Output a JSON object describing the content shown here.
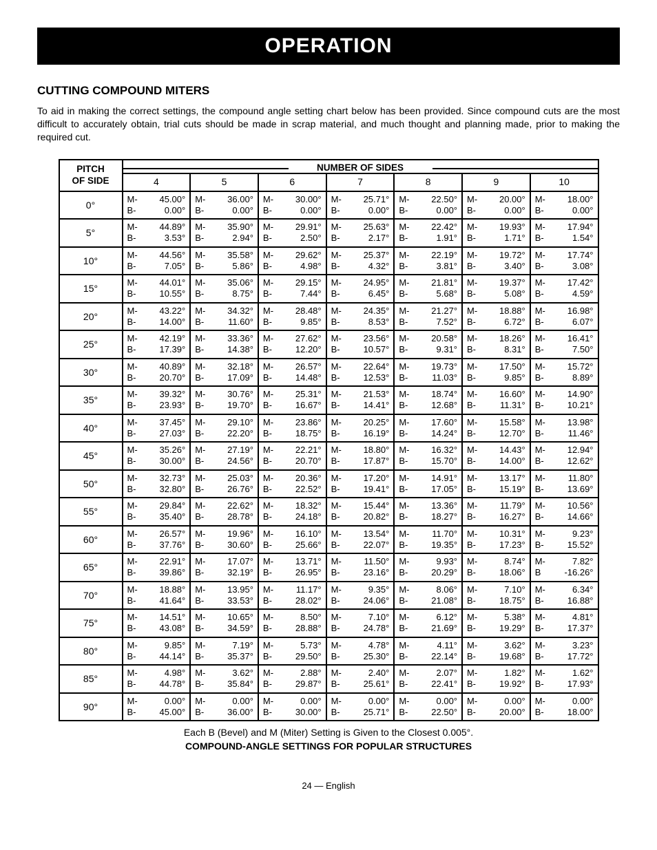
{
  "banner": "OPERATION",
  "heading": "CUTTING COMPOUND MITERS",
  "intro": "To aid in making the correct settings, the compound angle setting chart below has been provided. Since compound cuts are the most difficult to accurately obtain, trial cuts should be made in scrap material, and much thought and planning made, prior to making the required cut.",
  "table": {
    "sides_header": "NUMBER OF SIDES",
    "pitch_header_l1": "PITCH",
    "pitch_header_l2": "OF SIDE",
    "columns": [
      "4",
      "5",
      "6",
      "7",
      "8",
      "9",
      "10"
    ],
    "rows": [
      {
        "pitch": "0°",
        "cells": [
          {
            "m": "M- 45.00°",
            "b": "B-   0.00°"
          },
          {
            "m": "M- 36.00°",
            "b": "B-   0.00°"
          },
          {
            "m": "M- 30.00°",
            "b": "B-   0.00°"
          },
          {
            "m": "M- 25.71°",
            "b": "B-   0.00°"
          },
          {
            "m": "M- 22.50°",
            "b": "B-   0.00°"
          },
          {
            "m": "M- 20.00°",
            "b": "B-   0.00°"
          },
          {
            "m": "M- 18.00°",
            "b": "B-   0.00°"
          }
        ]
      },
      {
        "pitch": "5°",
        "cells": [
          {
            "m": "M- 44.89°",
            "b": "B-   3.53°"
          },
          {
            "m": "M- 35.90°",
            "b": "B-   2.94°"
          },
          {
            "m": "M- 29.91°",
            "b": "B-   2.50°"
          },
          {
            "m": "M- 25.63°",
            "b": "B-   2.17°"
          },
          {
            "m": "M- 22.42°",
            "b": "B-   1.91°"
          },
          {
            "m": "M- 19.93°",
            "b": "B-   1.71°"
          },
          {
            "m": "M- 17.94°",
            "b": "B-   1.54°"
          }
        ]
      },
      {
        "pitch": "10°",
        "cells": [
          {
            "m": "M- 44.56°",
            "b": "B-   7.05°"
          },
          {
            "m": "M- 35.58°",
            "b": "B-   5.86°"
          },
          {
            "m": "M- 29.62°",
            "b": "B-   4.98°"
          },
          {
            "m": "M- 25.37°",
            "b": "B-   4.32°"
          },
          {
            "m": "M- 22.19°",
            "b": "B-   3.81°"
          },
          {
            "m": "M- 19.72°",
            "b": "B-   3.40°"
          },
          {
            "m": "M- 17.74°",
            "b": "B-   3.08°"
          }
        ]
      },
      {
        "pitch": "15°",
        "cells": [
          {
            "m": "M- 44.01°",
            "b": "B- 10.55°"
          },
          {
            "m": "M- 35.06°",
            "b": "B-   8.75°"
          },
          {
            "m": "M- 29.15°",
            "b": "B-   7.44°"
          },
          {
            "m": "M- 24.95°",
            "b": "B-   6.45°"
          },
          {
            "m": "M- 21.81°",
            "b": "B-   5.68°"
          },
          {
            "m": "M- 19.37°",
            "b": "B-   5.08°"
          },
          {
            "m": "M- 17.42°",
            "b": "B-   4.59°"
          }
        ]
      },
      {
        "pitch": "20°",
        "cells": [
          {
            "m": "M- 43.22°",
            "b": "B- 14.00°"
          },
          {
            "m": "M- 34.32°",
            "b": "B- 11.60°"
          },
          {
            "m": "M- 28.48°",
            "b": "B-   9.85°"
          },
          {
            "m": "M- 24.35°",
            "b": "B-   8.53°"
          },
          {
            "m": "M- 21.27°",
            "b": "B-   7.52°"
          },
          {
            "m": "M- 18.88°",
            "b": "B-   6.72°"
          },
          {
            "m": "M- 16.98°",
            "b": "B-   6.07°"
          }
        ]
      },
      {
        "pitch": "25°",
        "cells": [
          {
            "m": "M- 42.19°",
            "b": "B- 17.39°"
          },
          {
            "m": "M- 33.36°",
            "b": "B- 14.38°"
          },
          {
            "m": "M- 27.62°",
            "b": "B- 12.20°"
          },
          {
            "m": "M- 23.56°",
            "b": "B- 10.57°"
          },
          {
            "m": "M- 20.58°",
            "b": "B-   9.31°"
          },
          {
            "m": "M- 18.26°",
            "b": "B-   8.31°"
          },
          {
            "m": "M- 16.41°",
            "b": "B-   7.50°"
          }
        ]
      },
      {
        "pitch": "30°",
        "cells": [
          {
            "m": "M- 40.89°",
            "b": "B- 20.70°"
          },
          {
            "m": "M- 32.18°",
            "b": "B- 17.09°"
          },
          {
            "m": "M- 26.57°",
            "b": "B- 14.48°"
          },
          {
            "m": "M- 22.64°",
            "b": "B- 12.53°"
          },
          {
            "m": "M- 19.73°",
            "b": "B- 11.03°"
          },
          {
            "m": "M- 17.50°",
            "b": "B-   9.85°"
          },
          {
            "m": "M- 15.72°",
            "b": "B-   8.89°"
          }
        ]
      },
      {
        "pitch": "35°",
        "cells": [
          {
            "m": "M- 39.32°",
            "b": "B- 23.93°"
          },
          {
            "m": "M- 30.76°",
            "b": "B- 19.70°"
          },
          {
            "m": "M- 25.31°",
            "b": "B- 16.67°"
          },
          {
            "m": "M- 21.53°",
            "b": "B- 14.41°"
          },
          {
            "m": "M- 18.74°",
            "b": "B- 12.68°"
          },
          {
            "m": "M- 16.60°",
            "b": "B- 11.31°"
          },
          {
            "m": "M- 14.90°",
            "b": "B- 10.21°"
          }
        ]
      },
      {
        "pitch": "40°",
        "cells": [
          {
            "m": "M- 37.45°",
            "b": "B- 27.03°"
          },
          {
            "m": "M- 29.10°",
            "b": "B- 22.20°"
          },
          {
            "m": "M- 23.86°",
            "b": "B- 18.75°"
          },
          {
            "m": "M- 20.25°",
            "b": "B- 16.19°"
          },
          {
            "m": "M- 17.60°",
            "b": "B- 14.24°"
          },
          {
            "m": "M- 15.58°",
            "b": "B- 12.70°"
          },
          {
            "m": "M- 13.98°",
            "b": "B- 11.46°"
          }
        ]
      },
      {
        "pitch": "45°",
        "cells": [
          {
            "m": "M- 35.26°",
            "b": "B-  30.00°"
          },
          {
            "m": "M- 27.19°",
            "b": "B- 24.56°"
          },
          {
            "m": "M- 22.21°",
            "b": "B- 20.70°"
          },
          {
            "m": "M- 18.80°",
            "b": "B- 17.87°"
          },
          {
            "m": "M- 16.32°",
            "b": "B- 15.70°"
          },
          {
            "m": "M- 14.43°",
            "b": "B- 14.00°"
          },
          {
            "m": "M- 12.94°",
            "b": "B- 12.62°"
          }
        ]
      },
      {
        "pitch": "50°",
        "cells": [
          {
            "m": "M- 32.73°",
            "b": "B- 32.80°"
          },
          {
            "m": "M- 25.03°",
            "b": "B- 26.76°"
          },
          {
            "m": "M- 20.36°",
            "b": "B- 22.52°"
          },
          {
            "m": "M- 17.20°",
            "b": "B- 19.41°"
          },
          {
            "m": "M- 14.91°",
            "b": "B- 17.05°"
          },
          {
            "m": "M- 13.17°",
            "b": "B- 15.19°"
          },
          {
            "m": "M- 11.80°",
            "b": "B- 13.69°"
          }
        ]
      },
      {
        "pitch": "55°",
        "cells": [
          {
            "m": "M- 29.84°",
            "b": "B- 35.40°"
          },
          {
            "m": "M- 22.62°",
            "b": "B- 28.78°"
          },
          {
            "m": "M- 18.32°",
            "b": "B- 24.18°"
          },
          {
            "m": "M- 15.44°",
            "b": "B-  20.82°"
          },
          {
            "m": "M- 13.36°",
            "b": "B- 18.27°"
          },
          {
            "m": "M- 11.79°",
            "b": "B- 16.27°"
          },
          {
            "m": "M- 10.56°",
            "b": "B- 14.66°"
          }
        ]
      },
      {
        "pitch": "60°",
        "cells": [
          {
            "m": "M- 26.57°",
            "b": "B- 37.76°"
          },
          {
            "m": "M- 19.96°",
            "b": "B- 30.60°"
          },
          {
            "m": "M- 16.10°",
            "b": "B- 25.66°"
          },
          {
            "m": "M- 13.54°",
            "b": "B- 22.07°"
          },
          {
            "m": "M- 11.70°",
            "b": "B- 19.35°"
          },
          {
            "m": "M- 10.31°",
            "b": "B- 17.23°"
          },
          {
            "m": "M-   9.23°",
            "b": "B- 15.52°"
          }
        ]
      },
      {
        "pitch": "65°",
        "cells": [
          {
            "m": "M- 22.91°",
            "b": "B- 39.86°"
          },
          {
            "m": "M- 17.07°",
            "b": "B- 32.19°"
          },
          {
            "m": "M- 13.71°",
            "b": "B- 26.95°"
          },
          {
            "m": "M- 11.50°",
            "b": "B- 23.16°"
          },
          {
            "m": "M-   9.93°",
            "b": "B- 20.29°"
          },
          {
            "m": "M-   8.74°",
            "b": "B- 18.06°"
          },
          {
            "m": "M-   7.82°",
            "b": "B -16.26°"
          }
        ]
      },
      {
        "pitch": "70°",
        "cells": [
          {
            "m": "M- 18.88°",
            "b": "B- 41.64°"
          },
          {
            "m": "M- 13.95°",
            "b": "B- 33.53°"
          },
          {
            "m": "M- 11.17°",
            "b": "B- 28.02°"
          },
          {
            "m": "M-   9.35°",
            "b": "B- 24.06°"
          },
          {
            "m": "M-   8.06°",
            "b": "B- 21.08°"
          },
          {
            "m": "M-   7.10°",
            "b": "B- 18.75°"
          },
          {
            "m": "M-   6.34°",
            "b": "B- 16.88°"
          }
        ]
      },
      {
        "pitch": "75°",
        "cells": [
          {
            "m": "M- 14.51°",
            "b": "B- 43.08°"
          },
          {
            "m": "M- 10.65°",
            "b": "B- 34.59°"
          },
          {
            "m": "M-   8.50°",
            "b": "B- 28.88°"
          },
          {
            "m": "M-   7.10°",
            "b": "B- 24.78°"
          },
          {
            "m": "M-   6.12°",
            "b": "B- 21.69°"
          },
          {
            "m": "M-   5.38°",
            "b": "B- 19.29°"
          },
          {
            "m": "M-   4.81°",
            "b": "B- 17.37°"
          }
        ]
      },
      {
        "pitch": "80°",
        "cells": [
          {
            "m": "M-   9.85°",
            "b": "B- 44.14°"
          },
          {
            "m": "M-   7.19°",
            "b": "B- 35.37°"
          },
          {
            "m": "M-   5.73°",
            "b": "B- 29.50°"
          },
          {
            "m": "M-   4.78°",
            "b": "B- 25.30°"
          },
          {
            "m": "M-   4.11°",
            "b": "B- 22.14°"
          },
          {
            "m": "M-   3.62°",
            "b": "B- 19.68°"
          },
          {
            "m": "M-   3.23°",
            "b": "B- 17.72°"
          }
        ]
      },
      {
        "pitch": "85°",
        "cells": [
          {
            "m": "M-   4.98°",
            "b": "B- 44.78°"
          },
          {
            "m": "M-   3.62°",
            "b": "B- 35.84°"
          },
          {
            "m": "M-   2.88°",
            "b": "B- 29.87°"
          },
          {
            "m": "M-   2.40°",
            "b": "B- 25.61°"
          },
          {
            "m": "M-   2.07°",
            "b": "B- 22.41°"
          },
          {
            "m": "M-   1.82°",
            "b": "B- 19.92°"
          },
          {
            "m": "M-   1.62°",
            "b": "B- 17.93°"
          }
        ]
      },
      {
        "pitch": "90°",
        "cells": [
          {
            "m": "M-   0.00°",
            "b": "B- 45.00°"
          },
          {
            "m": "M-   0.00°",
            "b": "B- 36.00°"
          },
          {
            "m": "M-   0.00°",
            "b": "B- 30.00°"
          },
          {
            "m": "M-   0.00°",
            "b": "B- 25.71°"
          },
          {
            "m": "M-   0.00°",
            "b": "B- 22.50°"
          },
          {
            "m": "M-   0.00°",
            "b": "B- 20.00°"
          },
          {
            "m": "M-   0.00°",
            "b": "B- 18.00°"
          }
        ]
      }
    ]
  },
  "caption1": "Each B (Bevel) and M (Miter) Setting is Given to the Closest 0.005°.",
  "caption2": "COMPOUND-ANGLE SETTINGS FOR POPULAR STRUCTURES",
  "pagenum": "24 — English"
}
